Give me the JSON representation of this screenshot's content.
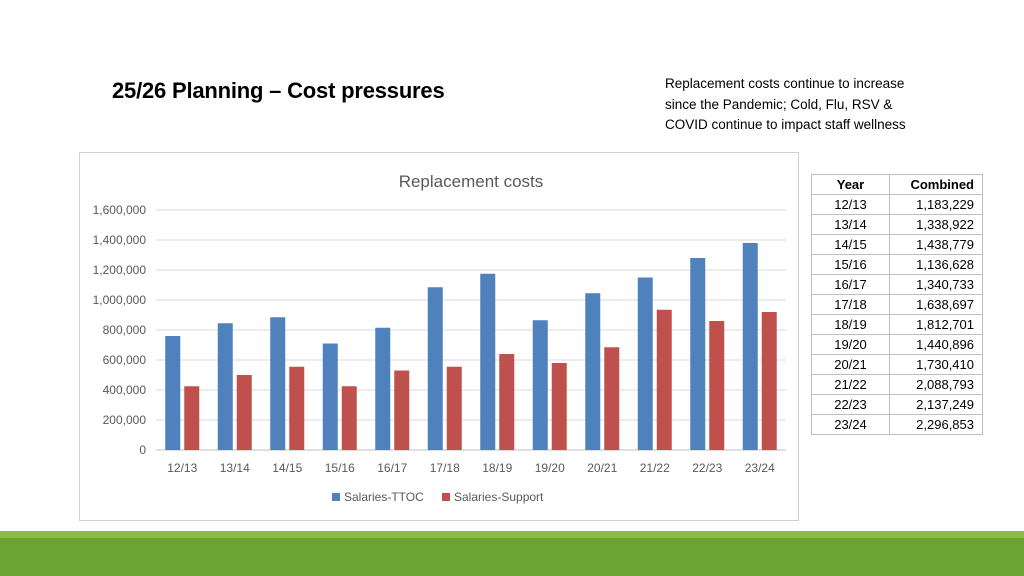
{
  "slide": {
    "title": "25/26 Planning – Cost pressures",
    "subtitle_lines": [
      "Replacement costs continue to increase",
      "since the Pandemic; Cold, Flu, RSV &",
      "COVID continue to impact staff wellness"
    ]
  },
  "chart_data": {
    "type": "bar",
    "title": "Replacement costs",
    "categories": [
      "12/13",
      "13/14",
      "14/15",
      "15/16",
      "16/17",
      "17/18",
      "18/19",
      "19/20",
      "20/21",
      "21/22",
      "22/23",
      "23/24"
    ],
    "series": [
      {
        "name": "Salaries-TTOC",
        "color": "#4f81bd",
        "values": [
          760000,
          845000,
          885000,
          710000,
          815000,
          1085000,
          1175000,
          865000,
          1045000,
          1150000,
          1280000,
          1380000
        ]
      },
      {
        "name": "Salaries-Support",
        "color": "#c0504d",
        "values": [
          425000,
          500000,
          555000,
          425000,
          530000,
          555000,
          640000,
          580000,
          685000,
          935000,
          860000,
          920000
        ]
      }
    ],
    "yticks": [
      "0",
      "200,000",
      "400,000",
      "600,000",
      "800,000",
      "1,000,000",
      "1,200,000",
      "1,400,000",
      "1,600,000"
    ],
    "ylim": [
      0,
      1600000
    ],
    "xlabel": "",
    "ylabel": "",
    "grid": true,
    "legend": "bottom"
  },
  "table": {
    "headers": [
      "Year",
      "Combined"
    ],
    "rows": [
      [
        "12/13",
        "1,183,229"
      ],
      [
        "13/14",
        "1,338,922"
      ],
      [
        "14/15",
        "1,438,779"
      ],
      [
        "15/16",
        "1,136,628"
      ],
      [
        "16/17",
        "1,340,733"
      ],
      [
        "17/18",
        "1,638,697"
      ],
      [
        "18/19",
        "1,812,701"
      ],
      [
        "19/20",
        "1,440,896"
      ],
      [
        "20/21",
        "1,730,410"
      ],
      [
        "21/22",
        "2,088,793"
      ],
      [
        "22/23",
        "2,137,249"
      ],
      [
        "23/24",
        "2,296,853"
      ]
    ]
  }
}
